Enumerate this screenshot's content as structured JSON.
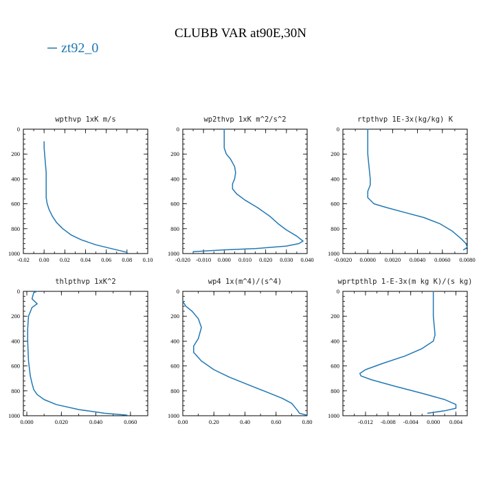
{
  "figure": {
    "title": "CLUBB VAR at90E,30N",
    "legend": {
      "label": "zt92_0",
      "color": "#1f77b4"
    }
  },
  "chart_data": [
    {
      "type": "line",
      "title": "wpthvp   1xK m/s",
      "xlim": [
        -0.02,
        0.1
      ],
      "ylim": [
        1000,
        0
      ],
      "xticks": [
        -0.02,
        0.0,
        0.02,
        0.04,
        0.06,
        0.08,
        0.1
      ],
      "xtick_labels": [
        "-0.02",
        "0.00",
        "0.02",
        "0.04",
        "0.06",
        "0.08",
        "0.10"
      ],
      "yticks": [
        0,
        200,
        400,
        600,
        800,
        1000
      ],
      "ytick_labels": [
        "0",
        "200",
        "400",
        "600",
        "800",
        "1000"
      ],
      "series": [
        {
          "color": "#1f77b4",
          "x": [
            0.0,
            0.0,
            0.001,
            0.002,
            0.002,
            0.002,
            0.003,
            0.005,
            0.008,
            0.012,
            0.018,
            0.026,
            0.036,
            0.05,
            0.065,
            0.08
          ],
          "y": [
            100,
            150,
            250,
            350,
            450,
            550,
            600,
            650,
            700,
            750,
            800,
            850,
            890,
            930,
            960,
            990
          ]
        }
      ]
    },
    {
      "type": "line",
      "title": "wp2thvp   1xK m^2/s^2",
      "xlim": [
        -0.02,
        0.04
      ],
      "ylim": [
        1000,
        0
      ],
      "xticks": [
        -0.02,
        -0.01,
        0.0,
        0.01,
        0.02,
        0.03,
        0.04
      ],
      "xtick_labels": [
        "-0.020",
        "-0.010",
        "0.000",
        "0.010",
        "0.020",
        "0.030",
        "0.040"
      ],
      "yticks": [
        0,
        200,
        400,
        600,
        800,
        1000
      ],
      "ytick_labels": [
        "0",
        "200",
        "400",
        "600",
        "800",
        "1000"
      ],
      "series": [
        {
          "color": "#1f77b4",
          "x": [
            0.0,
            0.0,
            0.001,
            0.003,
            0.005,
            0.0055,
            0.005,
            0.004,
            0.004,
            0.006,
            0.01,
            0.016,
            0.022,
            0.026,
            0.03,
            0.035,
            0.038,
            0.036,
            0.03,
            0.015,
            0.0,
            -0.015
          ],
          "y": [
            0,
            150,
            200,
            240,
            300,
            350,
            400,
            440,
            480,
            520,
            570,
            630,
            700,
            760,
            810,
            860,
            900,
            920,
            940,
            960,
            970,
            985
          ]
        }
      ]
    },
    {
      "type": "line",
      "title": "rtpthvp   1E-3x(kg/kg) K",
      "xlim": [
        -0.002,
        0.008
      ],
      "ylim": [
        1000,
        0
      ],
      "xticks": [
        -0.002,
        0.0,
        0.002,
        0.004,
        0.006,
        0.008
      ],
      "xtick_labels": [
        "-0.0020",
        "0.0000",
        "0.0020",
        "0.0040",
        "0.0060",
        "0.0080"
      ],
      "yticks": [
        0,
        200,
        400,
        600,
        800,
        1000
      ],
      "ytick_labels": [
        "0",
        "200",
        "400",
        "600",
        "800",
        "1000"
      ],
      "series": [
        {
          "color": "#1f77b4",
          "x": [
            0.0,
            0.0,
            0.0001,
            0.0002,
            0.0002,
            0.0,
            0.0,
            0.0005,
            0.0015,
            0.003,
            0.0045,
            0.0058,
            0.0068,
            0.0075,
            0.0079,
            0.008,
            0.0077
          ],
          "y": [
            0,
            200,
            300,
            400,
            450,
            500,
            550,
            600,
            630,
            670,
            710,
            760,
            820,
            880,
            920,
            950,
            970
          ]
        }
      ]
    },
    {
      "type": "line",
      "title": "thlpthvp   1xK^2",
      "xlim": [
        -0.002,
        0.07
      ],
      "ylim": [
        1000,
        0
      ],
      "xticks": [
        0.0,
        0.02,
        0.04,
        0.06
      ],
      "xtick_labels": [
        "0.000",
        "0.020",
        "0.040",
        "0.060"
      ],
      "yticks": [
        0,
        200,
        400,
        600,
        800,
        1000
      ],
      "ytick_labels": [
        "0",
        "200",
        "400",
        "600",
        "800",
        "1000"
      ],
      "series": [
        {
          "color": "#1f77b4",
          "x": [
            0.006,
            0.004,
            0.003,
            0.006,
            0.003,
            0.001,
            0.0005,
            0.0005,
            0.0008,
            0.001,
            0.0015,
            0.002,
            0.003,
            0.004,
            0.006,
            0.01,
            0.017,
            0.03,
            0.045,
            0.058
          ],
          "y": [
            0,
            10,
            60,
            100,
            130,
            200,
            300,
            400,
            500,
            560,
            620,
            680,
            740,
            790,
            830,
            870,
            910,
            950,
            980,
            995
          ]
        }
      ]
    },
    {
      "type": "line",
      "title": "wp4   1x(m^4)/(s^4)",
      "xlim": [
        0,
        0.8
      ],
      "ylim": [
        1000,
        0
      ],
      "xticks": [
        0.0,
        0.2,
        0.4,
        0.6,
        0.8
      ],
      "xtick_labels": [
        "0.00",
        "0.20",
        "0.40",
        "0.60",
        "0.80"
      ],
      "yticks": [
        0,
        200,
        400,
        600,
        800,
        1000
      ],
      "ytick_labels": [
        "0",
        "200",
        "400",
        "600",
        "800",
        "1000"
      ],
      "series": [
        {
          "color": "#1f77b4",
          "x": [
            0.0,
            0.02,
            0.06,
            0.1,
            0.12,
            0.1,
            0.07,
            0.07,
            0.12,
            0.2,
            0.3,
            0.42,
            0.54,
            0.64,
            0.7,
            0.72,
            0.74,
            0.75,
            0.78,
            0.8
          ],
          "y": [
            80,
            120,
            160,
            220,
            290,
            380,
            440,
            490,
            560,
            630,
            690,
            750,
            810,
            860,
            900,
            930,
            960,
            980,
            990,
            995
          ]
        }
      ]
    },
    {
      "type": "line",
      "title": "wprtpthlp   1-E-3x(m kg K)/(s kg)",
      "xlim": [
        -0.016,
        0.006
      ],
      "ylim": [
        1000,
        0
      ],
      "xticks": [
        -0.012,
        -0.008,
        -0.004,
        0.0,
        0.004
      ],
      "xtick_labels": [
        "-0.012",
        "-0.008",
        "-0.004",
        "0.000",
        "0.004"
      ],
      "yticks": [
        0,
        200,
        400,
        600,
        800,
        1000
      ],
      "ytick_labels": [
        "0",
        "200",
        "400",
        "600",
        "800",
        "1000"
      ],
      "series": [
        {
          "color": "#1f77b4",
          "x": [
            0.0,
            0.0,
            0.0002,
            0.0003,
            0.0,
            -0.002,
            -0.005,
            -0.009,
            -0.012,
            -0.013,
            -0.0128,
            -0.011,
            -0.007,
            -0.002,
            0.002,
            0.004,
            0.004,
            0.002,
            -0.001
          ],
          "y": [
            0,
            200,
            300,
            350,
            400,
            460,
            520,
            580,
            630,
            660,
            680,
            710,
            760,
            820,
            870,
            910,
            940,
            960,
            980
          ]
        }
      ]
    }
  ]
}
